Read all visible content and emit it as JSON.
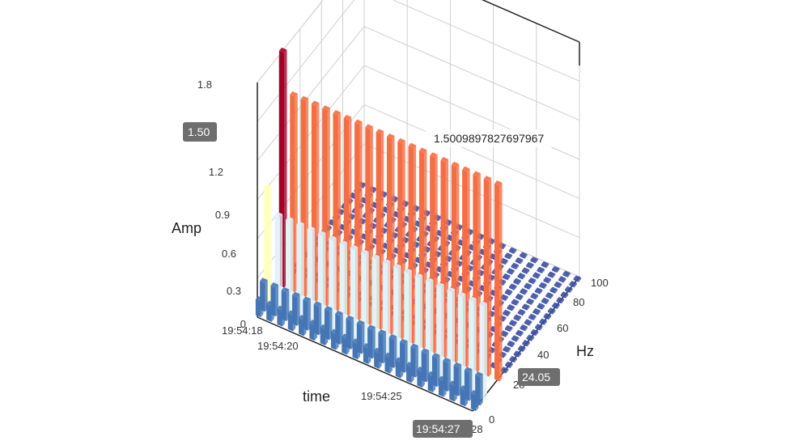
{
  "chart_data": {
    "type": "bar3d",
    "axes": {
      "time": {
        "title": "time",
        "ticks": [
          "19:54:18",
          "19:54:20",
          "19:54:25",
          "19:54:28"
        ]
      },
      "hz": {
        "title": "Hz",
        "ticks": [
          "0",
          "20",
          "40",
          "60",
          "80",
          "100"
        ],
        "range": [
          0,
          100
        ]
      },
      "amp": {
        "title": "Amp",
        "ticks": [
          "0",
          "0.3",
          "0.6",
          "0.9",
          "1.2",
          "1.5",
          "1.8"
        ],
        "range": [
          0,
          1.8
        ]
      }
    },
    "grid": true,
    "colorscale": [
      "#313695",
      "#4575b4",
      "#74add1",
      "#abd9e9",
      "#e0f3f8",
      "#ffffbf",
      "#fee090",
      "#fdae61",
      "#f46d43",
      "#d73027",
      "#a50026"
    ],
    "series": [
      {
        "hz": 24.05,
        "amplitude": 1.5,
        "first_value": 1.8
      },
      {
        "hz": 10,
        "amplitude": 0.72,
        "first_value": 0.9
      },
      {
        "hz": 6,
        "amplitude": 0.22
      },
      {
        "hz": 2,
        "amplitude": 0.12
      }
    ],
    "time_steps": 21,
    "hover": {
      "tooltip": "1.5009897827697967",
      "hz": "24.05",
      "time": "19:54:27",
      "amp": "1.50"
    }
  }
}
